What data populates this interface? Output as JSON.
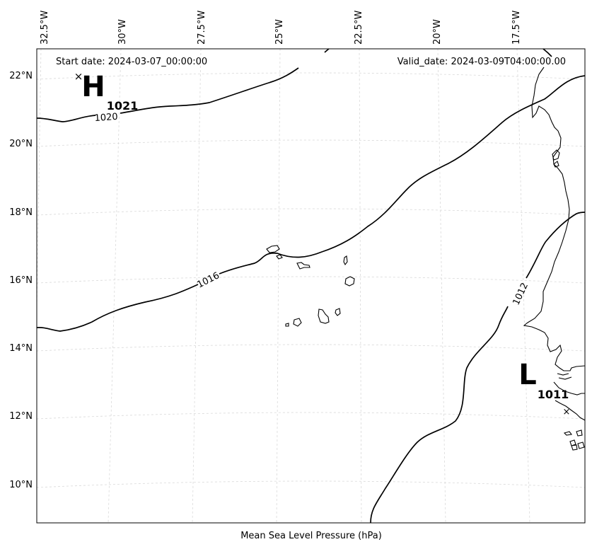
{
  "header": {
    "start_label": "Start date: 2024-03-07_00:00:00",
    "valid_label": "Valid_date: 2024-03-09T04:00:00.00"
  },
  "footer": {
    "caption": "Mean Sea Level Pressure (hPa)"
  },
  "axes": {
    "longitude_ticks": [
      "32.5°W",
      "30°W",
      "27.5°W",
      "25°W",
      "22.5°W",
      "20°W",
      "17.5°W"
    ],
    "latitude_ticks": [
      "22°N",
      "20°N",
      "18°N",
      "16°N",
      "14°N",
      "12°N",
      "10°N"
    ]
  },
  "isobars": [
    {
      "value": "1020"
    },
    {
      "value": "1016"
    },
    {
      "value": "1012"
    }
  ],
  "pressure_centers": [
    {
      "symbol": "H",
      "value": "1021",
      "kind": "high"
    },
    {
      "symbol": "L",
      "value": "1011",
      "kind": "low"
    }
  ],
  "map": {
    "grid": true,
    "gridline_color": "#d9d9d9",
    "land_outline_color": "#000000",
    "projection": "conic"
  }
}
